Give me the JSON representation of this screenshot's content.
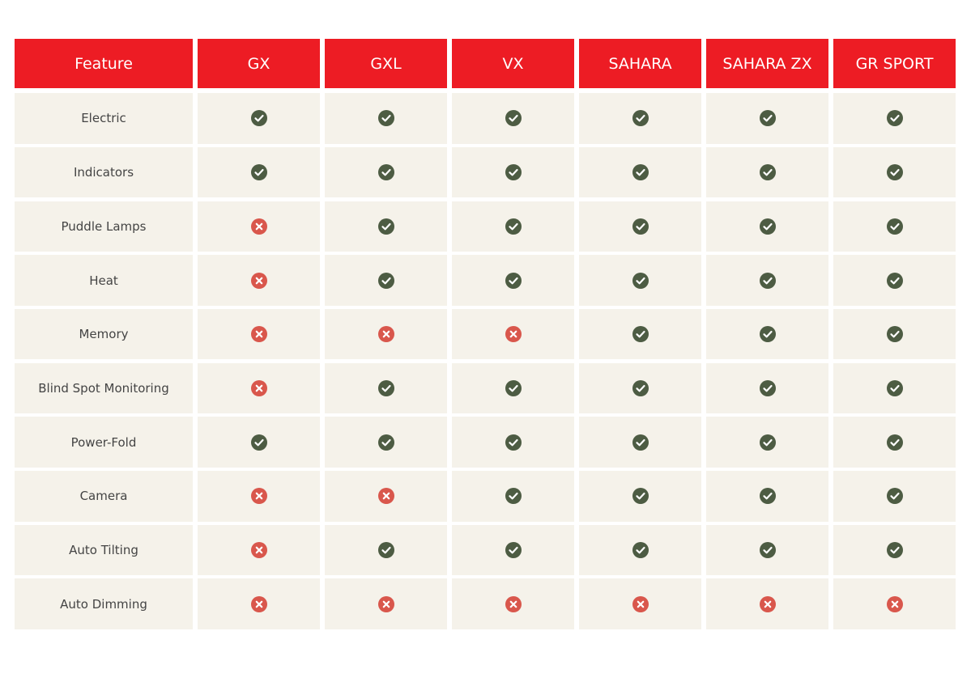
{
  "table": {
    "header": [
      "Feature",
      "GX",
      "GXL",
      "VX",
      "SAHARA",
      "SAHARA ZX",
      "GR SPORT"
    ],
    "rows": [
      {
        "feature": "Electric",
        "values": [
          true,
          true,
          true,
          true,
          true,
          true
        ]
      },
      {
        "feature": "Indicators",
        "values": [
          true,
          true,
          true,
          true,
          true,
          true
        ]
      },
      {
        "feature": "Puddle Lamps",
        "values": [
          false,
          true,
          true,
          true,
          true,
          true
        ]
      },
      {
        "feature": "Heat",
        "values": [
          false,
          true,
          true,
          true,
          true,
          true
        ]
      },
      {
        "feature": "Memory",
        "values": [
          false,
          false,
          false,
          true,
          true,
          true
        ]
      },
      {
        "feature": "Blind Spot Monitoring",
        "values": [
          false,
          true,
          true,
          true,
          true,
          true
        ]
      },
      {
        "feature": "Power-Fold",
        "values": [
          true,
          true,
          true,
          true,
          true,
          true
        ]
      },
      {
        "feature": "Camera",
        "values": [
          false,
          false,
          true,
          true,
          true,
          true
        ]
      },
      {
        "feature": "Auto Tilting",
        "values": [
          false,
          true,
          true,
          true,
          true,
          true
        ]
      },
      {
        "feature": "Auto Dimming",
        "values": [
          false,
          false,
          false,
          false,
          false,
          false
        ]
      }
    ]
  }
}
